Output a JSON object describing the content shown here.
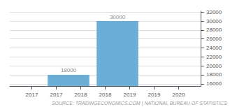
{
  "chart_data": {
    "type": "bar",
    "x": [
      2017.75,
      2018.75
    ],
    "values": [
      18000,
      30000
    ],
    "color": "#6aaed6",
    "xlim": [
      2016.55,
      2020.45
    ],
    "xticks": [
      2017,
      {
        "value": 2017.5,
        "label": "2017"
      },
      2018,
      {
        "value": 2018.5,
        "label": "2018"
      },
      2019,
      {
        "value": 2019.5,
        "label": "2019"
      },
      2020
    ],
    "ylim": [
      15500,
      32200
    ],
    "yticks": [
      16000,
      18000,
      20000,
      22000,
      24000,
      26000,
      28000,
      30000,
      32000
    ],
    "grid": true,
    "data_labels": true,
    "annotation": "SOURCE: TRADINGECONOMICS.COM | NATIONAL BUREAU OF STATISTICS"
  }
}
